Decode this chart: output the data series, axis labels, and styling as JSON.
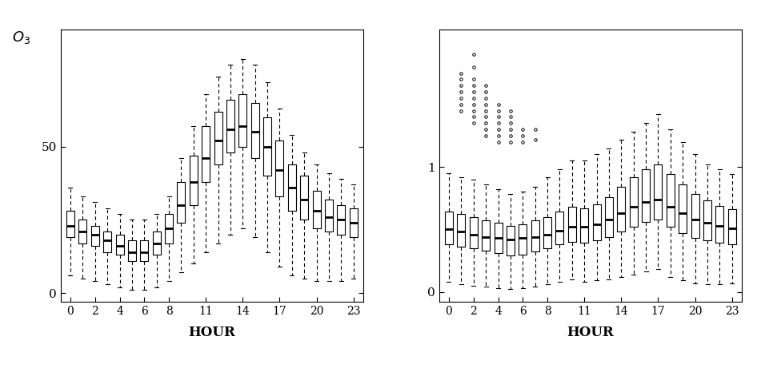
{
  "hours": [
    0,
    1,
    2,
    3,
    4,
    5,
    6,
    7,
    8,
    9,
    10,
    11,
    12,
    13,
    14,
    15,
    16,
    17,
    18,
    19,
    20,
    21,
    22,
    23
  ],
  "xtick_labels": [
    "0",
    "2",
    "4",
    "6",
    "8",
    "11",
    "14",
    "17",
    "20",
    "23"
  ],
  "xtick_positions": [
    0,
    2,
    4,
    6,
    8,
    11,
    14,
    17,
    20,
    23
  ],
  "xlabel": "HOUR",
  "o3_median": [
    23,
    21,
    20,
    18,
    16,
    14,
    14,
    17,
    22,
    30,
    38,
    46,
    52,
    56,
    57,
    55,
    50,
    42,
    36,
    32,
    28,
    26,
    25,
    24
  ],
  "o3_q1": [
    19,
    17,
    16,
    14,
    13,
    11,
    11,
    13,
    17,
    24,
    30,
    38,
    44,
    48,
    50,
    46,
    40,
    33,
    28,
    25,
    22,
    21,
    20,
    19
  ],
  "o3_q3": [
    28,
    25,
    23,
    21,
    20,
    18,
    18,
    21,
    27,
    38,
    47,
    57,
    62,
    66,
    68,
    65,
    60,
    52,
    44,
    40,
    35,
    32,
    30,
    29
  ],
  "o3_whislo": [
    6,
    5,
    4,
    3,
    2,
    1,
    1,
    2,
    4,
    7,
    10,
    14,
    17,
    20,
    22,
    19,
    14,
    9,
    6,
    5,
    4,
    4,
    4,
    5
  ],
  "o3_whishi": [
    36,
    33,
    31,
    29,
    27,
    25,
    25,
    27,
    33,
    46,
    57,
    68,
    74,
    78,
    80,
    78,
    72,
    63,
    54,
    48,
    44,
    41,
    39,
    37
  ],
  "pan_median": [
    0.5,
    0.48,
    0.46,
    0.44,
    0.43,
    0.42,
    0.43,
    0.44,
    0.46,
    0.49,
    0.52,
    0.52,
    0.54,
    0.58,
    0.63,
    0.68,
    0.72,
    0.74,
    0.68,
    0.63,
    0.58,
    0.55,
    0.53,
    0.51
  ],
  "pan_q1": [
    0.38,
    0.36,
    0.35,
    0.33,
    0.31,
    0.29,
    0.3,
    0.32,
    0.35,
    0.38,
    0.4,
    0.39,
    0.41,
    0.44,
    0.48,
    0.52,
    0.56,
    0.58,
    0.52,
    0.47,
    0.43,
    0.41,
    0.39,
    0.38
  ],
  "pan_q3": [
    0.64,
    0.62,
    0.6,
    0.57,
    0.55,
    0.53,
    0.54,
    0.57,
    0.6,
    0.64,
    0.68,
    0.67,
    0.7,
    0.76,
    0.84,
    0.92,
    0.98,
    1.02,
    0.94,
    0.86,
    0.78,
    0.73,
    0.69,
    0.66
  ],
  "pan_whislo": [
    0.08,
    0.06,
    0.05,
    0.04,
    0.03,
    0.02,
    0.03,
    0.04,
    0.06,
    0.08,
    0.1,
    0.08,
    0.09,
    0.1,
    0.12,
    0.14,
    0.16,
    0.18,
    0.12,
    0.09,
    0.07,
    0.06,
    0.06,
    0.07
  ],
  "pan_whishi": [
    0.95,
    0.92,
    0.9,
    0.86,
    0.82,
    0.78,
    0.8,
    0.84,
    0.92,
    0.98,
    1.05,
    1.05,
    1.1,
    1.15,
    1.22,
    1.28,
    1.35,
    1.42,
    1.3,
    1.2,
    1.1,
    1.02,
    0.98,
    0.94
  ],
  "pan_fliers": {
    "1": [
      1.45,
      1.5,
      1.55,
      1.6,
      1.65,
      1.7,
      1.75
    ],
    "2": [
      1.35,
      1.4,
      1.45,
      1.5,
      1.55,
      1.6,
      1.65,
      1.7,
      1.8,
      1.9
    ],
    "3": [
      1.25,
      1.3,
      1.35,
      1.4,
      1.45,
      1.5,
      1.55,
      1.6,
      1.65
    ],
    "4": [
      1.2,
      1.25,
      1.3,
      1.35,
      1.4,
      1.45,
      1.5
    ],
    "5": [
      1.2,
      1.25,
      1.3,
      1.35,
      1.4,
      1.45
    ],
    "6": [
      1.2,
      1.25,
      1.3
    ],
    "7": [
      1.22,
      1.3
    ]
  },
  "o3_ylim": [
    -3,
    90
  ],
  "o3_yticks": [
    0,
    50
  ],
  "pan_ylim": [
    -0.08,
    2.1
  ],
  "pan_yticks": [
    0,
    1
  ],
  "figsize": [
    9.46,
    4.61
  ],
  "dpi": 100
}
